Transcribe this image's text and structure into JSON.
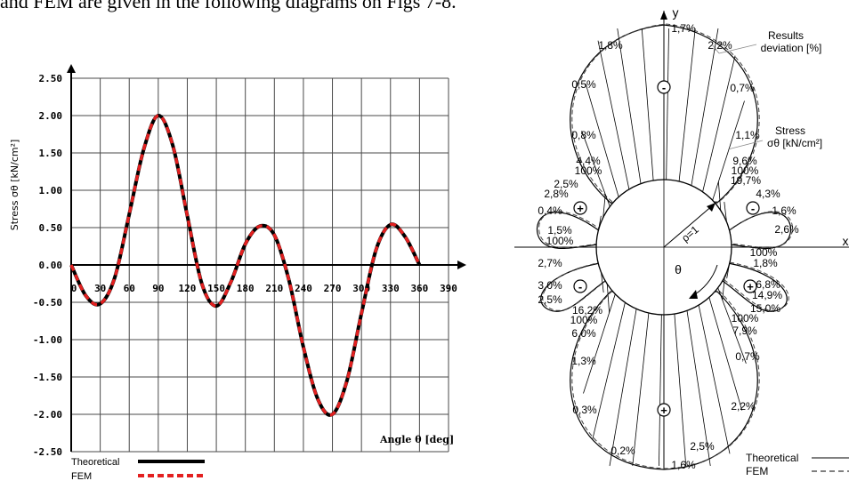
{
  "page": {
    "header_text": "and FEM are given in the following diagrams on Figs 7-8."
  },
  "chart_data": [
    {
      "type": "line",
      "xlabel": "Angle θ [deg]",
      "ylabel": "Stress σθ [kN/cm²]",
      "xlim": [
        0,
        390
      ],
      "ylim": [
        -2.5,
        2.5
      ],
      "x_ticks": [
        "0",
        "30",
        "60",
        "90",
        "120",
        "150",
        "180",
        "210",
        "240",
        "270",
        "300",
        "330",
        "360",
        "390"
      ],
      "y_ticks": [
        "2.50",
        "2.00",
        "1.50",
        "1.00",
        "0.50",
        "0.00",
        "-0.50",
        "-1.00",
        "-1.50",
        "-2.00",
        "-2.50"
      ],
      "grid": true,
      "legend_position": "bottom-left",
      "series": [
        {
          "name": "Theoretical",
          "color": "#000000",
          "style": "solid",
          "x": [
            0,
            15,
            30,
            45,
            60,
            75,
            90,
            105,
            120,
            135,
            150,
            165,
            180,
            195,
            210,
            225,
            240,
            255,
            270,
            285,
            300,
            315,
            330,
            345,
            360
          ],
          "y": [
            0.0,
            -0.41,
            -0.52,
            -0.17,
            0.68,
            1.55,
            2.0,
            1.6,
            0.66,
            -0.25,
            -0.55,
            -0.23,
            0.28,
            0.52,
            0.4,
            -0.2,
            -1.1,
            -1.8,
            -2.0,
            -1.55,
            -0.65,
            0.2,
            0.54,
            0.38,
            0.0
          ]
        },
        {
          "name": "FEM",
          "color": "#e32020",
          "style": "dashed",
          "x": [
            0,
            15,
            30,
            45,
            60,
            75,
            90,
            105,
            120,
            135,
            150,
            165,
            180,
            195,
            210,
            225,
            240,
            255,
            270,
            285,
            300,
            315,
            330,
            345,
            360
          ],
          "y": [
            0.0,
            -0.41,
            -0.52,
            -0.17,
            0.68,
            1.55,
            2.0,
            1.6,
            0.66,
            -0.25,
            -0.55,
            -0.23,
            0.28,
            0.52,
            0.4,
            -0.2,
            -1.1,
            -1.8,
            -2.0,
            -1.55,
            -0.65,
            0.2,
            0.54,
            0.38,
            0.0
          ]
        }
      ]
    },
    {
      "type": "polar",
      "axis_y_label": "y",
      "axis_x_label": "x",
      "radius_label": "ρ=1",
      "angle_label": "θ",
      "annotation_results": [
        "Results",
        "deviation [%]"
      ],
      "annotation_stress": [
        "Stress",
        "σθ [kN/cm²]"
      ],
      "sign_labels": [
        "-",
        "+",
        "+",
        "-",
        "-",
        "+"
      ],
      "percent_labels": [
        "1,7%",
        "2,2%",
        "1,8%",
        "0,5%",
        "0,7%",
        "0,8%",
        "1,1%",
        "4,4%",
        "100%",
        "9,6%",
        "100%",
        "19,7%",
        "2,5%",
        "4,3%",
        "2,8%",
        "1,6%",
        "0,4%",
        "2,6%",
        "1,5%",
        "100%",
        "100%",
        "1,8%",
        "2,7%",
        "6,8%",
        "3,0%",
        "14,9%",
        "2,5%",
        "15,0%",
        "16,2%",
        "100%",
        "100%",
        "7,9%",
        "6,0%",
        "0,7%",
        "1,3%",
        "0,3%",
        "2,2%",
        "0,2%",
        "2,5%",
        "1,6%"
      ],
      "legend": [
        {
          "name": "Theoretical",
          "style": "solid"
        },
        {
          "name": "FEM",
          "style": "dashed"
        }
      ]
    }
  ]
}
